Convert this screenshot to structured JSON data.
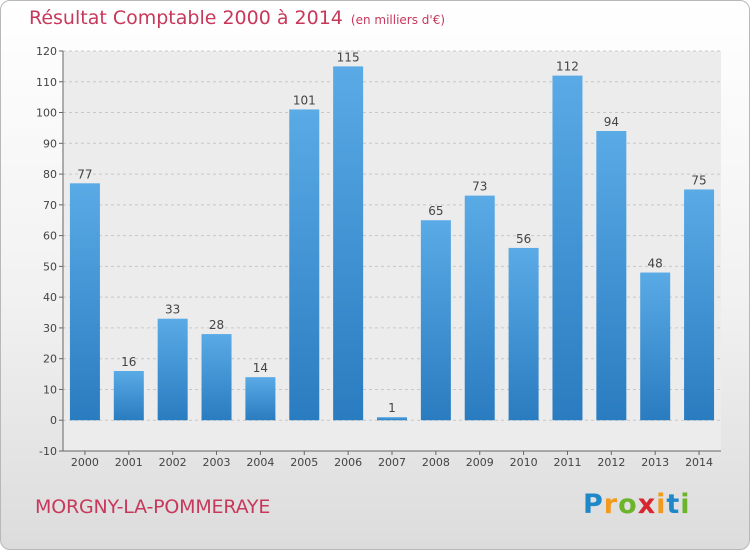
{
  "title": "Résultat Comptable 2000 à 2014",
  "subtitle": "(en milliers d'€)",
  "place": "MORGNY-LA-POMMERAYE",
  "logo": {
    "letters": [
      "P",
      "r",
      "o",
      "x",
      "i",
      "t",
      "i"
    ],
    "colors": [
      "#1e88c8",
      "#f29a1e",
      "#6cb42c",
      "#d8262e",
      "#f29a1e",
      "#1e88c8",
      "#6cb42c"
    ]
  },
  "colors": {
    "bar_top": "#5aaae6",
    "bar_bottom": "#2a7cc0",
    "title": "#c8385a"
  },
  "chart_data": {
    "type": "bar",
    "title": "Résultat Comptable 2000 à 2014",
    "subtitle": "(en milliers d'€)",
    "categories": [
      "2000",
      "2001",
      "2002",
      "2003",
      "2004",
      "2005",
      "2006",
      "2007",
      "2008",
      "2009",
      "2010",
      "2011",
      "2012",
      "2013",
      "2014"
    ],
    "values": [
      77,
      16,
      33,
      28,
      14,
      101,
      115,
      1,
      65,
      73,
      56,
      112,
      94,
      48,
      75
    ],
    "ylim": [
      -10,
      120
    ],
    "yticks": [
      -10,
      0,
      10,
      20,
      30,
      40,
      50,
      60,
      70,
      80,
      90,
      100,
      110,
      120
    ],
    "grid": true,
    "data_labels": true
  }
}
